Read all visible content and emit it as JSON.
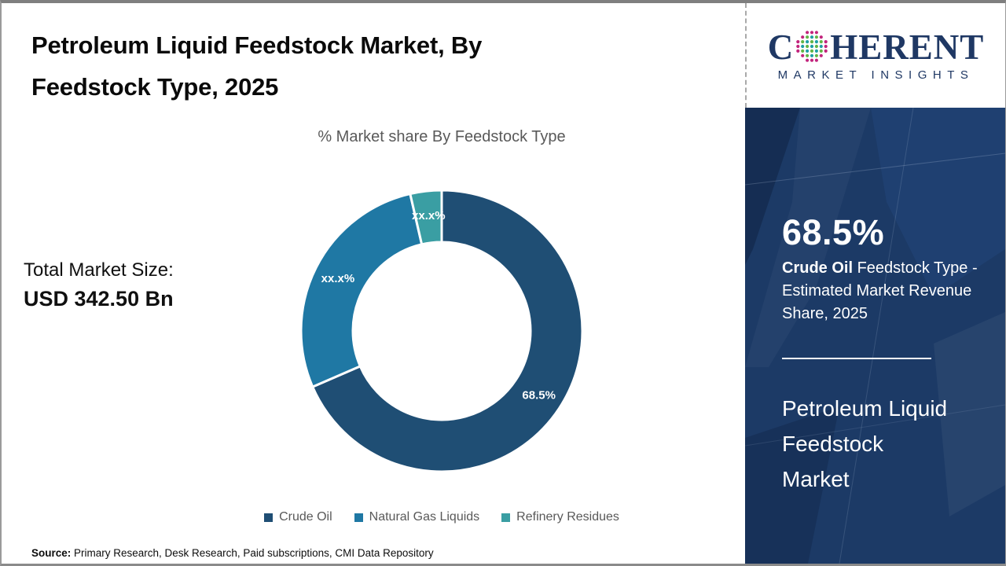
{
  "header": {
    "title": "Petroleum Liquid Feedstock Market, By Feedstock Type, 2025"
  },
  "chart_data": {
    "type": "pie",
    "subtype": "donut",
    "title": "% Market share By Feedstock Type",
    "direction": "clockwise",
    "start_angle_deg": 0,
    "legend_position": "bottom",
    "series": [
      {
        "name": "Crude Oil",
        "value": 68.5,
        "display_label": "68.5%",
        "color": "#1F4E74"
      },
      {
        "name": "Natural Gas Liquids",
        "value": 27.9,
        "display_label": "xx.x%",
        "color": "#1F78A4"
      },
      {
        "name": "Refinery Residues",
        "value": 3.6,
        "display_label": "xx.x%",
        "color": "#3A9EA3"
      }
    ],
    "annotation_total": {
      "label": "Total Market Size:",
      "value": "USD 342.50 Bn"
    }
  },
  "source": {
    "label": "Source:",
    "text": " Primary Research, Desk Research, Paid subscriptions, CMI Data Repository"
  },
  "sidebar": {
    "logo": {
      "brand_prefix": "C",
      "brand_suffix": "HERENT",
      "tagline": "MARKET INSIGHTS",
      "brand_color": "#1F3864"
    },
    "stat": {
      "value": "68.5%",
      "highlight": "Crude Oil",
      "description": " Feedstock Type - Estimated Market Revenue Share, 2025"
    },
    "panel_title": "Petroleum Liquid Feedstock Market",
    "panel_color": "#1C3A66"
  }
}
